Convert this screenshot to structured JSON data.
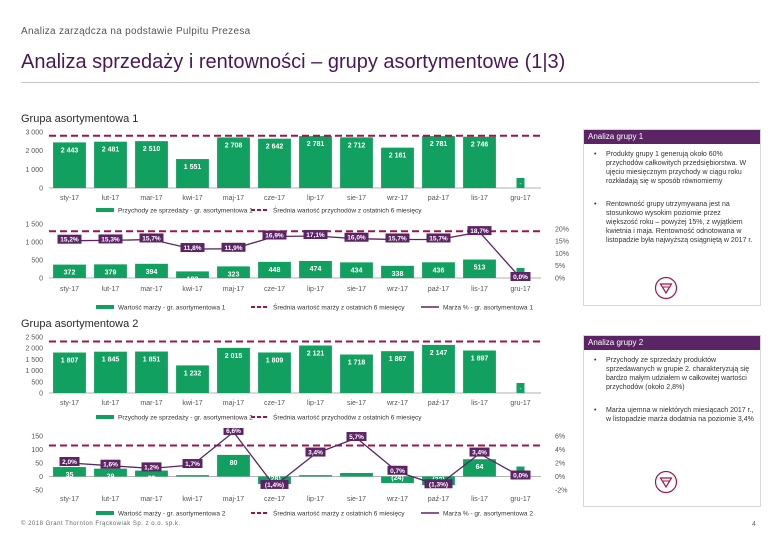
{
  "header": {
    "breadcrumb": "Analiza zarządcza na podstawie Pulpitu Prezesa",
    "title": "Analiza sprzedaży i rentowności – grupy asortymentowe (1|3)"
  },
  "groups": [
    {
      "title": "Grupa asortymentowa 1"
    },
    {
      "title": "Grupa asortymentowa 2"
    }
  ],
  "panels": [
    {
      "heading": "Analiza grupy 1",
      "bullets": [
        "Produkty grupy 1 generują około 60% przychodów całkowitych przedsiębiorstwa. W ujęciu miesięcznym przychody w ciągu roku rozkładają się w sposób równomierny",
        "Rentowność grupy utrzymywana jest na stosunkowo wysokim poziomie przez większość roku – powyżej 15%, z wyjątkiem kwietnia i maja. Rentowność odnotowana w listopadzie była najwyższą osiągniętą w 2017 r."
      ]
    },
    {
      "heading": "Analiza grupy 2",
      "bullets": [
        "Przychody ze sprzedaży produktów sprzedawanych w grupie 2. charakteryzują się bardzo małym udziałem w całkowitej wartości przychodów (około 2,8%)",
        "Marża ujemna w niektórych miesiącach 2017 r., w listopadzie marża dodatnia na poziomie 3,4%"
      ]
    }
  ],
  "footer": {
    "copyright": "© 2018 Grant Thornton Frąckowiak Sp. z o.o. sp.k.",
    "page_number": "4"
  },
  "colors": {
    "bar_green": "#11a060",
    "avg_line": "#a3134a",
    "margin_line": "#5b2565",
    "panel_header": "#5b2565",
    "title": "#4a1758"
  },
  "icons": {
    "logo": "grant-thornton-logo-icon"
  },
  "chart_data": [
    {
      "type": "bar",
      "categories": [
        "sty-17",
        "lut-17",
        "mar-17",
        "kwi-17",
        "maj-17",
        "cze-17",
        "lip-17",
        "sie-17",
        "wrz-17",
        "paź-17",
        "lis-17",
        "gru-17"
      ],
      "series": [
        {
          "name": "Przychody ze sprzedaży - gr. asortymentowa 1",
          "values": [
            2443,
            2481,
            2510,
            1551,
            2708,
            2642,
            2781,
            2712,
            2161,
            2781,
            2746,
            null
          ],
          "labels": [
            "2 443",
            "2 481",
            "2 510",
            "1 551",
            "2 708",
            "2 642",
            "2 781",
            "2 712",
            "2 161",
            "2 781",
            "2 746",
            "-"
          ]
        },
        {
          "name": "Średnia wartość przychodów z ostatnich 6 miesięcy",
          "values": [
            2800,
            2800,
            2800,
            2800,
            2800,
            2800,
            2800,
            2800,
            2800,
            2800,
            2800,
            2800
          ]
        }
      ],
      "yticks": [
        "3 000",
        "2 000",
        "1 000",
        "0"
      ],
      "ylim": [
        0,
        3000
      ]
    },
    {
      "type": "bar",
      "categories": [
        "sty-17",
        "lut-17",
        "mar-17",
        "kwi-17",
        "maj-17",
        "cze-17",
        "lip-17",
        "sie-17",
        "wrz-17",
        "paź-17",
        "lis-17",
        "gru-17"
      ],
      "series": [
        {
          "name": "Wartość marży - gr. asortymentowa 1",
          "values": [
            372,
            379,
            394,
            183,
            323,
            448,
            474,
            434,
            338,
            436,
            513,
            null
          ],
          "labels": [
            "372",
            "379",
            "394",
            "183",
            "323",
            "448",
            "474",
            "434",
            "338",
            "436",
            "513",
            "-"
          ]
        },
        {
          "name": "Średnia wartość marży z ostatnich 6 miesięcy",
          "values": [
            1300,
            1300,
            1300,
            1300,
            1300,
            1300,
            1300,
            1300,
            1300,
            1300,
            1300,
            1300
          ]
        },
        {
          "name": "Marża % - gr. asortymentowa 1",
          "axis": "right",
          "values": [
            15.2,
            15.3,
            15.7,
            11.8,
            11.9,
            16.9,
            17.1,
            16.0,
            15.7,
            15.7,
            18.7,
            0.0
          ],
          "labels": [
            "15,2%",
            "15,3%",
            "15,7%",
            "11,8%",
            "11,9%",
            "16,9%",
            "17,1%",
            "16,0%",
            "15,7%",
            "15,7%",
            "18,7%",
            "0,0%"
          ]
        }
      ],
      "yticks": [
        "1 500",
        "1 000",
        "500",
        "0"
      ],
      "ylim": [
        0,
        1500
      ],
      "y2ticks": [
        "20%",
        "15%",
        "10%",
        "5%",
        "0%"
      ],
      "y2lim": [
        0,
        22
      ]
    },
    {
      "type": "bar",
      "categories": [
        "sty-17",
        "lut-17",
        "mar-17",
        "kwi-17",
        "maj-17",
        "cze-17",
        "lip-17",
        "sie-17",
        "wrz-17",
        "paź-17",
        "lis-17",
        "gru-17"
      ],
      "series": [
        {
          "name": "Przychody ze sprzedaży - gr. asortymentowa 2",
          "values": [
            1807,
            1845,
            1851,
            1232,
            2015,
            1809,
            2121,
            1718,
            1867,
            2147,
            1897,
            null
          ],
          "labels": [
            "1 807",
            "1 845",
            "1 851",
            "1 232",
            "2 015",
            "1 809",
            "2 121",
            "1 718",
            "1 867",
            "2 147",
            "1 897",
            "-"
          ]
        },
        {
          "name": "Średnia wartość przychodów z ostatnich 6 miesięcy",
          "values": [
            2300,
            2300,
            2300,
            2300,
            2300,
            2300,
            2300,
            2300,
            2300,
            2300,
            2300,
            2300
          ]
        }
      ],
      "yticks": [
        "2 500",
        "2 000",
        "1 500",
        "1 000",
        "500",
        "0"
      ],
      "ylim": [
        0,
        2500
      ]
    },
    {
      "type": "bar",
      "categories": [
        "sty-17",
        "lut-17",
        "mar-17",
        "kwi-17",
        "maj-17",
        "cze-17",
        "lip-17",
        "sie-17",
        "wrz-17",
        "paź-17",
        "lis-17",
        "gru-17"
      ],
      "series": [
        {
          "name": "Wartość marży - gr. asortymentowa 2",
          "values": [
            35,
            29,
            22,
            5,
            80,
            -28,
            5,
            13,
            -24,
            -32,
            64,
            null
          ],
          "labels": [
            "35",
            "29",
            "22",
            "",
            "80",
            "(28)",
            "",
            "13",
            "(24)",
            "(32)",
            "64",
            "-"
          ]
        },
        {
          "name": "Średnia wartość marży z ostatnich 6 miesięcy",
          "values": [
            115,
            115,
            115,
            115,
            115,
            115,
            115,
            115,
            115,
            115,
            115,
            115
          ]
        },
        {
          "name": "Marża % - gr. asortymentowa 2",
          "axis": "right",
          "values": [
            2.0,
            1.6,
            1.2,
            1.7,
            6.6,
            -1.4,
            3.4,
            5.7,
            0.7,
            -1.3,
            3.4,
            0.0
          ],
          "labels": [
            "2,0%",
            "1,6%",
            "1,2%",
            "1,7%",
            "6,6%",
            "(1,4%)",
            "3,4%",
            "5,7%",
            "0,7%",
            "(1,3%)",
            "3,4%",
            "0,0%"
          ]
        }
      ],
      "yticks": [
        "150",
        "100",
        "50",
        "0",
        "-50"
      ],
      "ylim": [
        -50,
        150
      ],
      "y2ticks": [
        "6%",
        "4%",
        "2%",
        "0%",
        "-2%"
      ],
      "y2lim": [
        -2,
        6
      ]
    }
  ]
}
